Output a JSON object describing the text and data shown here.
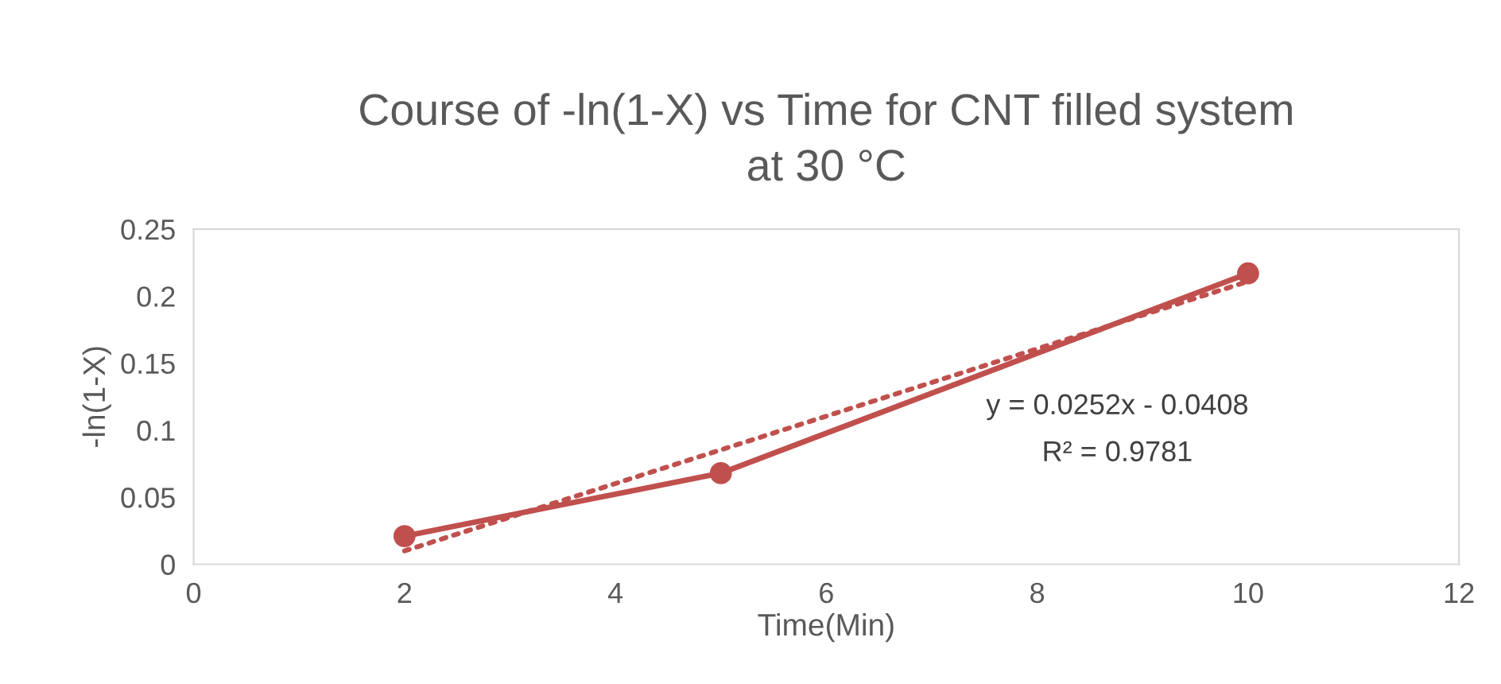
{
  "chart_data": {
    "type": "line",
    "title": "Course of -ln(1-X) vs Time for CNT filled system\nat 30 °C",
    "xlabel": "Time(Min)",
    "ylabel": "-ln(1-X)",
    "x": [
      2,
      5,
      10
    ],
    "series": [
      {
        "color": "#c0504d",
        "values": [
          0.021,
          0.068,
          0.217
        ],
        "marker": "circle",
        "line_style": "solid"
      },
      {
        "type": "line",
        "x": [
          2,
          10
        ],
        "color": "#c0504d",
        "values": [
          0.01,
          0.211
        ],
        "marker": "none",
        "line_style": "dotted"
      }
    ],
    "xlim": [
      0,
      12
    ],
    "xticks": [
      0,
      2,
      4,
      6,
      8,
      10,
      12
    ],
    "ylim": [
      0,
      0.25
    ],
    "yticks": [
      0,
      0.05,
      0.1,
      0.15,
      0.2,
      0.25
    ],
    "grid": false,
    "legend": false,
    "annotations": [
      "y = 0.0252x - 0.0408",
      "R² = 0.9781"
    ]
  }
}
